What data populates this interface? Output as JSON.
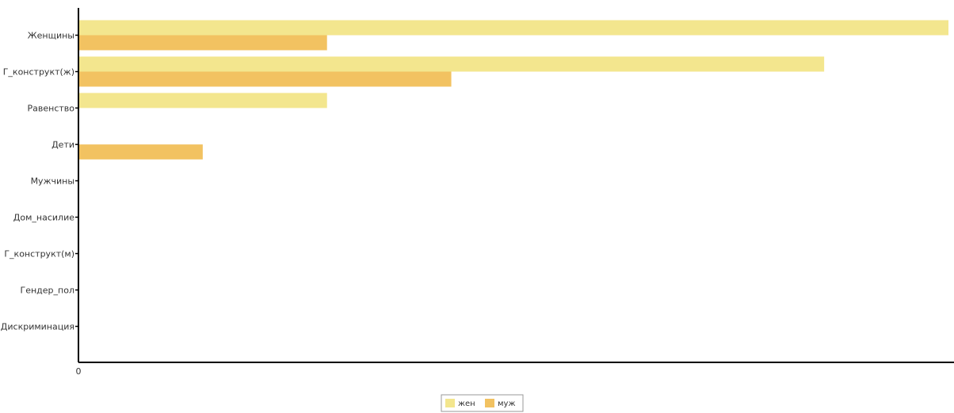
{
  "chart_data": {
    "type": "bar",
    "orientation": "horizontal",
    "categories": [
      "Женщины",
      "Г_конструкт(ж)",
      "Равенство",
      "Дети",
      "Мужчины",
      "Дом_насилие",
      "Г_конструкт(м)",
      "Гендер_пол",
      "Дискриминация"
    ],
    "series": [
      {
        "name": "жен",
        "color": "#f3e68e",
        "values": [
          7,
          6,
          2,
          0,
          0,
          0,
          0,
          0,
          0
        ]
      },
      {
        "name": "муж",
        "color": "#f2c261",
        "values": [
          2,
          3,
          0,
          1,
          0,
          0,
          0,
          0,
          0
        ]
      }
    ],
    "x_tick_labels": [
      "0"
    ],
    "xlim": [
      0,
      7
    ],
    "grid": false,
    "legend_placement": "bottom-center",
    "title": "",
    "xlabel": "",
    "ylabel": ""
  }
}
